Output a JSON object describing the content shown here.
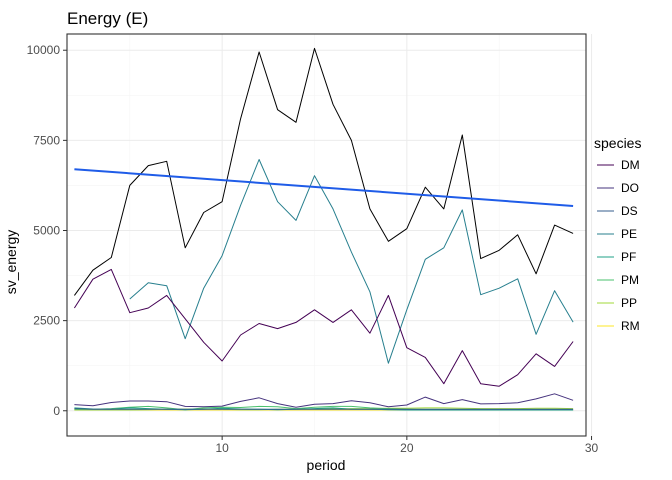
{
  "chart_data": {
    "type": "line",
    "title": "Energy (E)",
    "xlabel": "period",
    "ylabel": "sv_energy",
    "xlim": [
      1.6,
      29.7
    ],
    "ylim": [
      -700,
      10450
    ],
    "x_ticks": [
      10,
      20,
      30
    ],
    "x_tick_labels": [
      "10",
      "20",
      "30"
    ],
    "x_minor_ticks": [
      5,
      15,
      25
    ],
    "y_ticks": [
      0,
      2500,
      5000,
      7500,
      10000
    ],
    "y_tick_labels": [
      "0",
      "2500",
      "5000",
      "7500",
      "10000"
    ],
    "y_minor_ticks": [
      1250,
      3750,
      6250,
      8750
    ],
    "grid": true,
    "legend": {
      "title": "species",
      "position": "right"
    },
    "x": [
      2,
      3,
      4,
      5,
      6,
      7,
      8,
      9,
      10,
      11,
      12,
      13,
      14,
      15,
      16,
      17,
      18,
      19,
      20,
      21,
      22,
      23,
      24,
      25,
      26,
      27,
      28,
      29
    ],
    "total": {
      "color": "#000000",
      "values": [
        3200,
        3900,
        4250,
        6250,
        6800,
        6920,
        4520,
        5500,
        5800,
        8100,
        9950,
        8350,
        8000,
        10050,
        8500,
        7500,
        5600,
        4700,
        5050,
        6200,
        5600,
        7650,
        4220,
        4450,
        4880,
        3800,
        5150,
        4920
      ]
    },
    "trend": {
      "color": "#1f5ce8",
      "x": [
        2,
        29
      ],
      "values": [
        6700,
        5680
      ]
    },
    "series": [
      {
        "name": "DM",
        "color": "#440154",
        "values": [
          2850,
          3650,
          3920,
          2720,
          2850,
          3200,
          2550,
          1900,
          1380,
          2100,
          2420,
          2280,
          2450,
          2800,
          2450,
          2800,
          2150,
          3200,
          1750,
          1480,
          750,
          1670,
          750,
          680,
          1000,
          1580,
          1230,
          1920
        ]
      },
      {
        "name": "DO",
        "color": "#46337e",
        "values": [
          170,
          140,
          230,
          270,
          270,
          250,
          120,
          110,
          130,
          260,
          360,
          200,
          100,
          180,
          200,
          280,
          220,
          110,
          160,
          380,
          200,
          310,
          190,
          200,
          220,
          330,
          470,
          290
        ]
      },
      {
        "name": "DS",
        "color": "#365c8d",
        "values": [
          60,
          40,
          40,
          40,
          40,
          40,
          40,
          40,
          40,
          40,
          40,
          40,
          40,
          40,
          40,
          40,
          40,
          40,
          40,
          40,
          40,
          40,
          40,
          40,
          40,
          40,
          40,
          40
        ]
      },
      {
        "name": "PE",
        "color": "#277f8e",
        "values": [
          null,
          null,
          null,
          3100,
          3550,
          3470,
          2000,
          3400,
          4300,
          5700,
          6970,
          5800,
          5280,
          6520,
          5600,
          4400,
          3300,
          1320,
          2800,
          4200,
          4520,
          5570,
          3220,
          3400,
          3660,
          2120,
          3330,
          2460
        ]
      },
      {
        "name": "PF",
        "color": "#1fa187",
        "values": [
          80,
          50,
          40,
          80,
          60,
          40,
          30,
          40,
          70,
          50,
          40,
          30,
          40,
          60,
          80,
          40,
          40,
          30,
          20,
          20,
          20,
          20,
          20,
          20,
          20,
          20,
          20,
          20
        ]
      },
      {
        "name": "PM",
        "color": "#4ac16d",
        "values": [
          40,
          40,
          60,
          100,
          120,
          80,
          30,
          80,
          100,
          90,
          120,
          110,
          60,
          100,
          120,
          120,
          80,
          60,
          40,
          30,
          20,
          20,
          20,
          20,
          20,
          20,
          20,
          20
        ]
      },
      {
        "name": "PP",
        "color": "#a0da39",
        "values": [
          20,
          20,
          20,
          20,
          30,
          40,
          50,
          50,
          40,
          30,
          30,
          40,
          40,
          40,
          50,
          60,
          60,
          70,
          70,
          80,
          80,
          70,
          60,
          60,
          60,
          70,
          70,
          60
        ]
      },
      {
        "name": "RM",
        "color": "#fde725",
        "values": [
          20,
          20,
          20,
          20,
          20,
          20,
          20,
          20,
          20,
          20,
          20,
          20,
          20,
          20,
          20,
          20,
          20,
          20,
          20,
          20,
          20,
          20,
          20,
          20,
          20,
          20,
          20,
          20
        ]
      }
    ]
  }
}
